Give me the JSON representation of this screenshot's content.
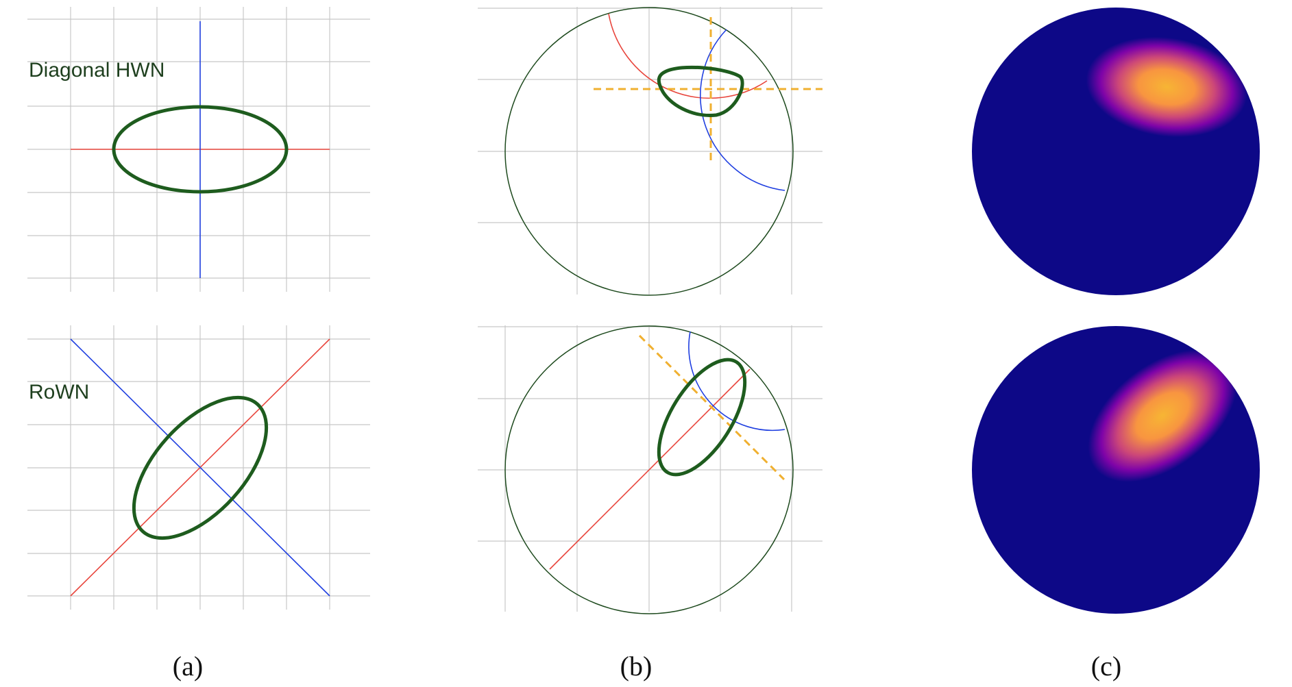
{
  "rows": {
    "top_label": "Diagonal HWN",
    "bottom_label": "RoWN"
  },
  "captions": {
    "a": "(a)",
    "b": "(b)",
    "c": "(c)"
  },
  "colors": {
    "grid": "#c8c8c8",
    "axis_first": "#e8453c",
    "axis_second": "#1f3fe0",
    "ellipse": "#1e5c1e",
    "disk_border": "#1e4a1e",
    "tangent_dashed": "#f0b030",
    "density_background": "#0d0887",
    "density_low": "#7e03a8",
    "density_mid": "#cc4778",
    "density_high": "#f89540",
    "density_peak": "#f7b534"
  }
}
